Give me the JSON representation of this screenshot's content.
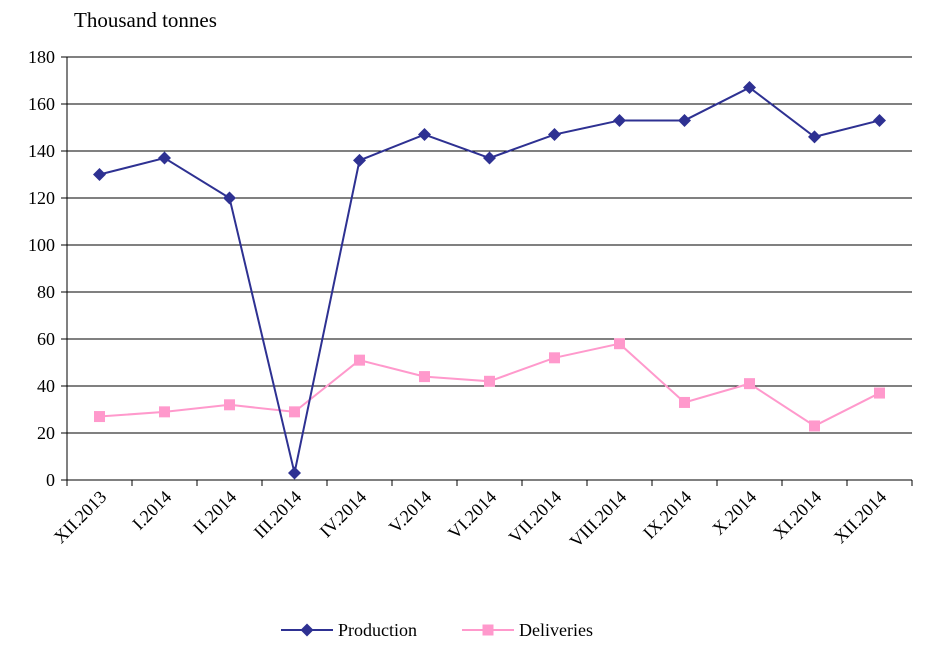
{
  "chart_data": {
    "type": "line",
    "ylabel": "Thousand tonnes",
    "categories": [
      "XII.2013",
      "I.2014",
      "II.2014",
      "III.2014",
      "IV.2014",
      "V.2014",
      "VI.2014",
      "VII.2014",
      "VIII.2014",
      "IX.2014",
      "X.2014",
      "XI.2014",
      "XII.2014"
    ],
    "ylim": [
      0,
      180
    ],
    "yticks": [
      0,
      20,
      40,
      60,
      80,
      100,
      120,
      140,
      160,
      180
    ],
    "grid": true,
    "legend_position": "bottom",
    "series": [
      {
        "name": "Production",
        "color": "#2E3192",
        "marker": "diamond",
        "values": [
          130,
          137,
          120,
          3,
          136,
          147,
          137,
          147,
          153,
          153,
          167,
          146,
          153
        ]
      },
      {
        "name": "Deliveries",
        "color": "#FF99CC",
        "marker": "square",
        "values": [
          27,
          29,
          32,
          29,
          51,
          44,
          42,
          52,
          58,
          33,
          41,
          23,
          37
        ]
      }
    ]
  }
}
